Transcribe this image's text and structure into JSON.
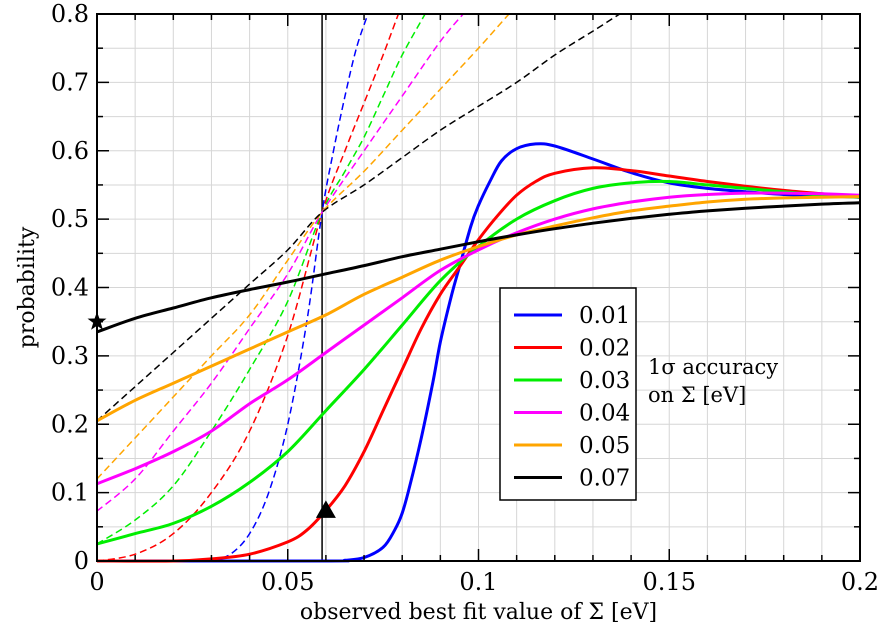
{
  "chart_data": {
    "type": "line",
    "title": "",
    "xlabel": "observed best fit value of Σ [eV]",
    "ylabel": "probability",
    "xlim": [
      0,
      0.2
    ],
    "ylim": [
      0,
      0.8
    ],
    "x_ticks": [
      "0",
      "0.05",
      "0.1",
      "0.15",
      "0.2"
    ],
    "y_ticks": [
      "0",
      "0.1",
      "0.2",
      "0.3",
      "0.4",
      "0.5",
      "0.6",
      "0.7",
      "0.8"
    ],
    "x_tick_values": [
      0,
      0.05,
      0.1,
      0.15,
      0.2
    ],
    "y_tick_values": [
      0,
      0.1,
      0.2,
      0.3,
      0.4,
      0.5,
      0.6,
      0.7,
      0.8
    ],
    "grid": true,
    "legend_position": "center-right",
    "annotation": [
      "1σ accuracy",
      "on Σ [eV]"
    ],
    "vertical_line_x": 0.059,
    "markers": [
      {
        "shape": "star",
        "x": 0,
        "y": 0.35
      },
      {
        "shape": "triangle",
        "x": 0.06,
        "y": 0.074
      }
    ],
    "series": [
      {
        "name": "0.01",
        "color": "#0000ff",
        "x": [
          0,
          0.06,
          0.065,
          0.07,
          0.075,
          0.078,
          0.08,
          0.082,
          0.085,
          0.088,
          0.09,
          0.093,
          0.095,
          0.098,
          0.1,
          0.103,
          0.106,
          0.11,
          0.115,
          0.12,
          0.13,
          0.14,
          0.15,
          0.16,
          0.17,
          0.18,
          0.19,
          0.2
        ],
        "y": [
          0,
          0.0,
          0.001,
          0.005,
          0.02,
          0.045,
          0.07,
          0.11,
          0.18,
          0.26,
          0.32,
          0.39,
          0.43,
          0.49,
          0.52,
          0.555,
          0.585,
          0.603,
          0.61,
          0.607,
          0.588,
          0.568,
          0.553,
          0.545,
          0.54,
          0.536,
          0.534,
          0.532
        ]
      },
      {
        "name": "0.02",
        "color": "#ff0000",
        "x": [
          0,
          0.02,
          0.03,
          0.04,
          0.05,
          0.055,
          0.06,
          0.065,
          0.07,
          0.075,
          0.08,
          0.085,
          0.09,
          0.095,
          0.1,
          0.105,
          0.11,
          0.115,
          0.12,
          0.13,
          0.14,
          0.15,
          0.16,
          0.17,
          0.18,
          0.19,
          0.2
        ],
        "y": [
          0,
          0.0,
          0.003,
          0.01,
          0.028,
          0.045,
          0.074,
          0.11,
          0.16,
          0.22,
          0.28,
          0.34,
          0.39,
          0.43,
          0.47,
          0.505,
          0.535,
          0.555,
          0.567,
          0.575,
          0.571,
          0.563,
          0.555,
          0.548,
          0.542,
          0.537,
          0.532
        ]
      },
      {
        "name": "0.03",
        "color": "#00ee00",
        "x": [
          0,
          0.01,
          0.02,
          0.03,
          0.04,
          0.05,
          0.06,
          0.07,
          0.08,
          0.09,
          0.1,
          0.11,
          0.12,
          0.13,
          0.14,
          0.15,
          0.16,
          0.17,
          0.18,
          0.19,
          0.2
        ],
        "y": [
          0.025,
          0.04,
          0.055,
          0.08,
          0.115,
          0.16,
          0.22,
          0.28,
          0.345,
          0.41,
          0.46,
          0.5,
          0.527,
          0.545,
          0.553,
          0.555,
          0.55,
          0.545,
          0.54,
          0.535,
          0.532
        ]
      },
      {
        "name": "0.04",
        "color": "#ff00ff",
        "x": [
          0,
          0.01,
          0.02,
          0.03,
          0.04,
          0.05,
          0.06,
          0.07,
          0.08,
          0.09,
          0.1,
          0.11,
          0.12,
          0.13,
          0.14,
          0.15,
          0.16,
          0.17,
          0.18,
          0.19,
          0.2
        ],
        "y": [
          0.113,
          0.135,
          0.16,
          0.19,
          0.23,
          0.265,
          0.305,
          0.345,
          0.385,
          0.425,
          0.455,
          0.48,
          0.5,
          0.515,
          0.525,
          0.532,
          0.536,
          0.538,
          0.538,
          0.537,
          0.535
        ]
      },
      {
        "name": "0.05",
        "color": "#ffa500",
        "x": [
          0,
          0.01,
          0.02,
          0.03,
          0.04,
          0.05,
          0.06,
          0.07,
          0.08,
          0.09,
          0.1,
          0.11,
          0.12,
          0.13,
          0.14,
          0.15,
          0.16,
          0.17,
          0.18,
          0.19,
          0.2
        ],
        "y": [
          0.205,
          0.235,
          0.26,
          0.285,
          0.31,
          0.335,
          0.36,
          0.39,
          0.415,
          0.44,
          0.46,
          0.477,
          0.49,
          0.502,
          0.512,
          0.519,
          0.525,
          0.529,
          0.531,
          0.532,
          0.533
        ]
      },
      {
        "name": "0.07",
        "color": "#000000",
        "x": [
          0,
          0.01,
          0.02,
          0.03,
          0.04,
          0.05,
          0.06,
          0.07,
          0.08,
          0.09,
          0.1,
          0.11,
          0.12,
          0.13,
          0.14,
          0.15,
          0.16,
          0.17,
          0.18,
          0.19,
          0.2
        ],
        "y": [
          0.335,
          0.355,
          0.37,
          0.385,
          0.397,
          0.408,
          0.42,
          0.432,
          0.445,
          0.456,
          0.467,
          0.477,
          0.486,
          0.494,
          0.501,
          0.507,
          0.512,
          0.516,
          0.519,
          0.522,
          0.524
        ]
      }
    ],
    "dashed_series": [
      {
        "color": "#0000ff",
        "x": [
          0.03,
          0.035,
          0.04,
          0.045,
          0.05,
          0.055,
          0.059,
          0.062,
          0.065,
          0.068,
          0.071
        ],
        "y": [
          0.0,
          0.01,
          0.04,
          0.1,
          0.2,
          0.35,
          0.51,
          0.6,
          0.68,
          0.75,
          0.8
        ]
      },
      {
        "color": "#ff0000",
        "x": [
          0.0,
          0.01,
          0.02,
          0.03,
          0.04,
          0.05,
          0.059,
          0.065,
          0.07,
          0.075,
          0.079
        ],
        "y": [
          0.0,
          0.01,
          0.04,
          0.1,
          0.19,
          0.33,
          0.51,
          0.6,
          0.67,
          0.74,
          0.8
        ]
      },
      {
        "color": "#00ee00",
        "x": [
          0.0,
          0.01,
          0.02,
          0.03,
          0.04,
          0.05,
          0.059,
          0.065,
          0.07,
          0.075,
          0.08,
          0.086
        ],
        "y": [
          0.025,
          0.06,
          0.11,
          0.19,
          0.28,
          0.38,
          0.51,
          0.57,
          0.62,
          0.68,
          0.74,
          0.8
        ]
      },
      {
        "color": "#ff00ff",
        "x": [
          0.0,
          0.01,
          0.02,
          0.03,
          0.04,
          0.05,
          0.059,
          0.07,
          0.08,
          0.09,
          0.096
        ],
        "y": [
          0.073,
          0.12,
          0.19,
          0.26,
          0.34,
          0.42,
          0.51,
          0.6,
          0.68,
          0.76,
          0.8
        ]
      },
      {
        "color": "#ffa500",
        "x": [
          0.0,
          0.01,
          0.02,
          0.03,
          0.04,
          0.05,
          0.059,
          0.07,
          0.08,
          0.09,
          0.1,
          0.108
        ],
        "y": [
          0.12,
          0.18,
          0.24,
          0.3,
          0.36,
          0.44,
          0.51,
          0.57,
          0.63,
          0.69,
          0.75,
          0.8
        ]
      },
      {
        "color": "#000000",
        "x": [
          0.0,
          0.01,
          0.02,
          0.03,
          0.04,
          0.05,
          0.059,
          0.07,
          0.08,
          0.09,
          0.1,
          0.11,
          0.12,
          0.13,
          0.137
        ],
        "y": [
          0.205,
          0.255,
          0.305,
          0.355,
          0.405,
          0.455,
          0.51,
          0.55,
          0.59,
          0.63,
          0.665,
          0.7,
          0.74,
          0.775,
          0.8
        ]
      }
    ]
  }
}
